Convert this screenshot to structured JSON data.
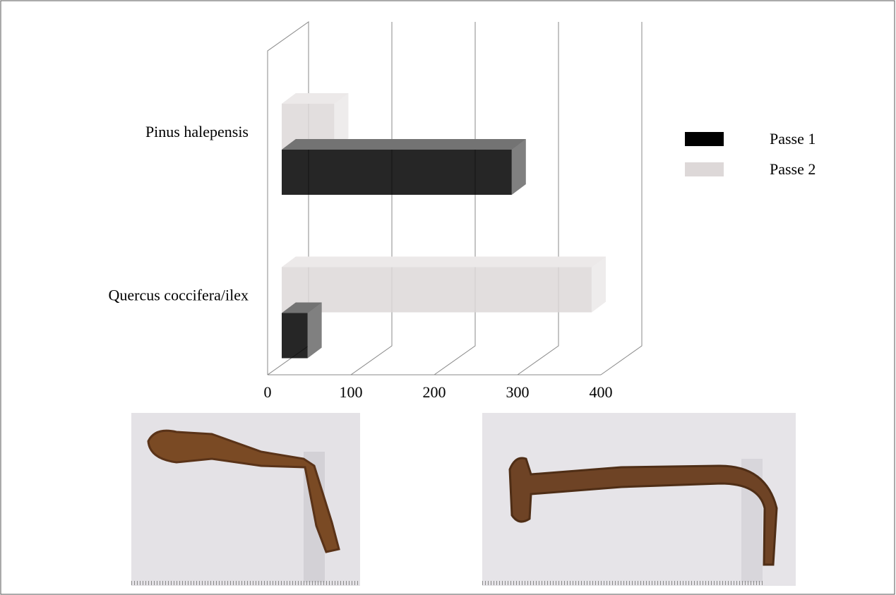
{
  "chart_data": {
    "type": "bar3d",
    "orientation": "horizontal",
    "categories": [
      "Pinus halepensis",
      "Quercus coccifera/ilex"
    ],
    "series": [
      {
        "name": "Passe 1",
        "color": "#000000",
        "values": [
          276,
          31
        ]
      },
      {
        "name": "Passe 2",
        "color": "#ddd8d8",
        "values": [
          63,
          372
        ]
      }
    ],
    "xlim": [
      0,
      400
    ],
    "xticks": [
      0,
      100,
      200,
      300,
      400
    ],
    "grid": true,
    "legend": "right"
  }
}
